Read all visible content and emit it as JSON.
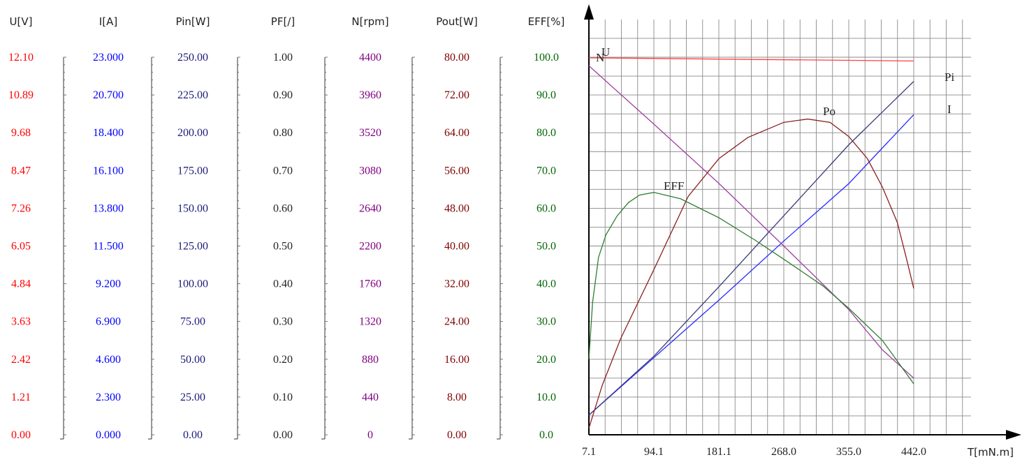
{
  "chart_data": {
    "type": "line",
    "x_label": "T[mN.m]",
    "x_ticks": [
      "7.1",
      "94.1",
      "181.1",
      "268.0",
      "355.0",
      "442.0"
    ],
    "xlim": [
      7.1,
      442.0
    ],
    "grid": true,
    "axes": [
      {
        "header": "U[V]",
        "color": "#ff0000",
        "ticks": [
          "12.10",
          "10.89",
          "9.68",
          "8.47",
          "7.26",
          "6.05",
          "4.84",
          "3.63",
          "2.42",
          "1.21",
          "0.00"
        ],
        "range": [
          0,
          12.1
        ]
      },
      {
        "header": "I[A]",
        "color": "#0000ff",
        "ticks": [
          "23.000",
          "20.700",
          "18.400",
          "16.100",
          "13.800",
          "11.500",
          "9.200",
          "6.900",
          "4.600",
          "2.300",
          "0.000"
        ],
        "range": [
          0,
          23.0
        ]
      },
      {
        "header": "Pin[W]",
        "color": "#1a1a7a",
        "ticks": [
          "250.00",
          "225.00",
          "200.00",
          "175.00",
          "150.00",
          "125.00",
          "100.00",
          "75.00",
          "50.00",
          "25.00",
          "0.00"
        ],
        "range": [
          0,
          250
        ]
      },
      {
        "header": "PF[/]",
        "color": "#222222",
        "ticks": [
          "1.00",
          "0.90",
          "0.80",
          "0.70",
          "0.60",
          "0.50",
          "0.40",
          "0.30",
          "0.20",
          "0.10",
          "0.00"
        ],
        "range": [
          0,
          1
        ]
      },
      {
        "header": "N[rpm]",
        "color": "#800080",
        "ticks": [
          "4400",
          "3960",
          "3520",
          "3080",
          "2640",
          "2200",
          "1760",
          "1320",
          "880",
          "440",
          "0"
        ],
        "range": [
          0,
          4400
        ]
      },
      {
        "header": "Pout[W]",
        "color": "#800000",
        "ticks": [
          "80.00",
          "72.00",
          "64.00",
          "56.00",
          "48.00",
          "40.00",
          "32.00",
          "24.00",
          "16.00",
          "8.00",
          "0.00"
        ],
        "range": [
          0,
          80
        ]
      },
      {
        "header": "EFF[%]",
        "color": "#006400",
        "ticks": [
          "100.0",
          "90.0",
          "80.0",
          "70.0",
          "60.0",
          "50.0",
          "40.0",
          "30.0",
          "20.0",
          "10.0",
          "0.0"
        ],
        "range": [
          0,
          100
        ]
      }
    ],
    "series": [
      {
        "name": "U",
        "unit_axis": "U[V]",
        "color": "#ff4040",
        "x": [
          7.1,
          442.0
        ],
        "y": [
          12.08,
          11.98
        ]
      },
      {
        "name": "I",
        "unit_axis": "I[A]",
        "color": "#2a2aff",
        "x": [
          7.1,
          94.1,
          181.1,
          268.0,
          355.0,
          442.0
        ],
        "y": [
          1.2,
          4.7,
          8.2,
          11.8,
          15.3,
          19.5
        ]
      },
      {
        "name": "Pi",
        "unit_axis": "Pin[W]",
        "color": "#3a3a7a",
        "x": [
          7.1,
          94.1,
          181.1,
          268.0,
          355.0,
          442.0
        ],
        "y": [
          13,
          52,
          98,
          145,
          192,
          234
        ]
      },
      {
        "name": "N",
        "unit_axis": "N[rpm]",
        "color": "#a040a0",
        "x": [
          7.1,
          94.1,
          181.1,
          268.0,
          355.0,
          400.0,
          442.0
        ],
        "y": [
          4300,
          3620,
          2930,
          2200,
          1460,
          990,
          660
        ]
      },
      {
        "name": "Po",
        "unit_axis": "Pout[W]",
        "color": "#8b2020",
        "x": [
          7.1,
          25,
          50,
          94.1,
          140,
          181.1,
          220,
          268.0,
          300,
          330,
          355.0,
          380,
          400,
          420,
          432,
          442.0
        ],
        "y": [
          1.4,
          10.5,
          20.5,
          35.0,
          50.5,
          58.5,
          63.0,
          66.2,
          66.9,
          66.2,
          63.2,
          58.5,
          52.5,
          45.0,
          37.5,
          31.0
        ]
      },
      {
        "name": "EFF",
        "unit_axis": "EFF[%]",
        "color": "#2e7d32",
        "x": [
          7.1,
          12,
          20,
          30,
          45,
          60,
          75,
          94.1,
          130,
          181.1,
          230,
          268.0,
          320,
          355.0,
          400,
          442.0
        ],
        "y": [
          20,
          35,
          47,
          53,
          58,
          61.5,
          63.5,
          64.2,
          62.5,
          57.5,
          51.5,
          46.5,
          39.5,
          33.5,
          25,
          13.5
        ]
      }
    ]
  }
}
